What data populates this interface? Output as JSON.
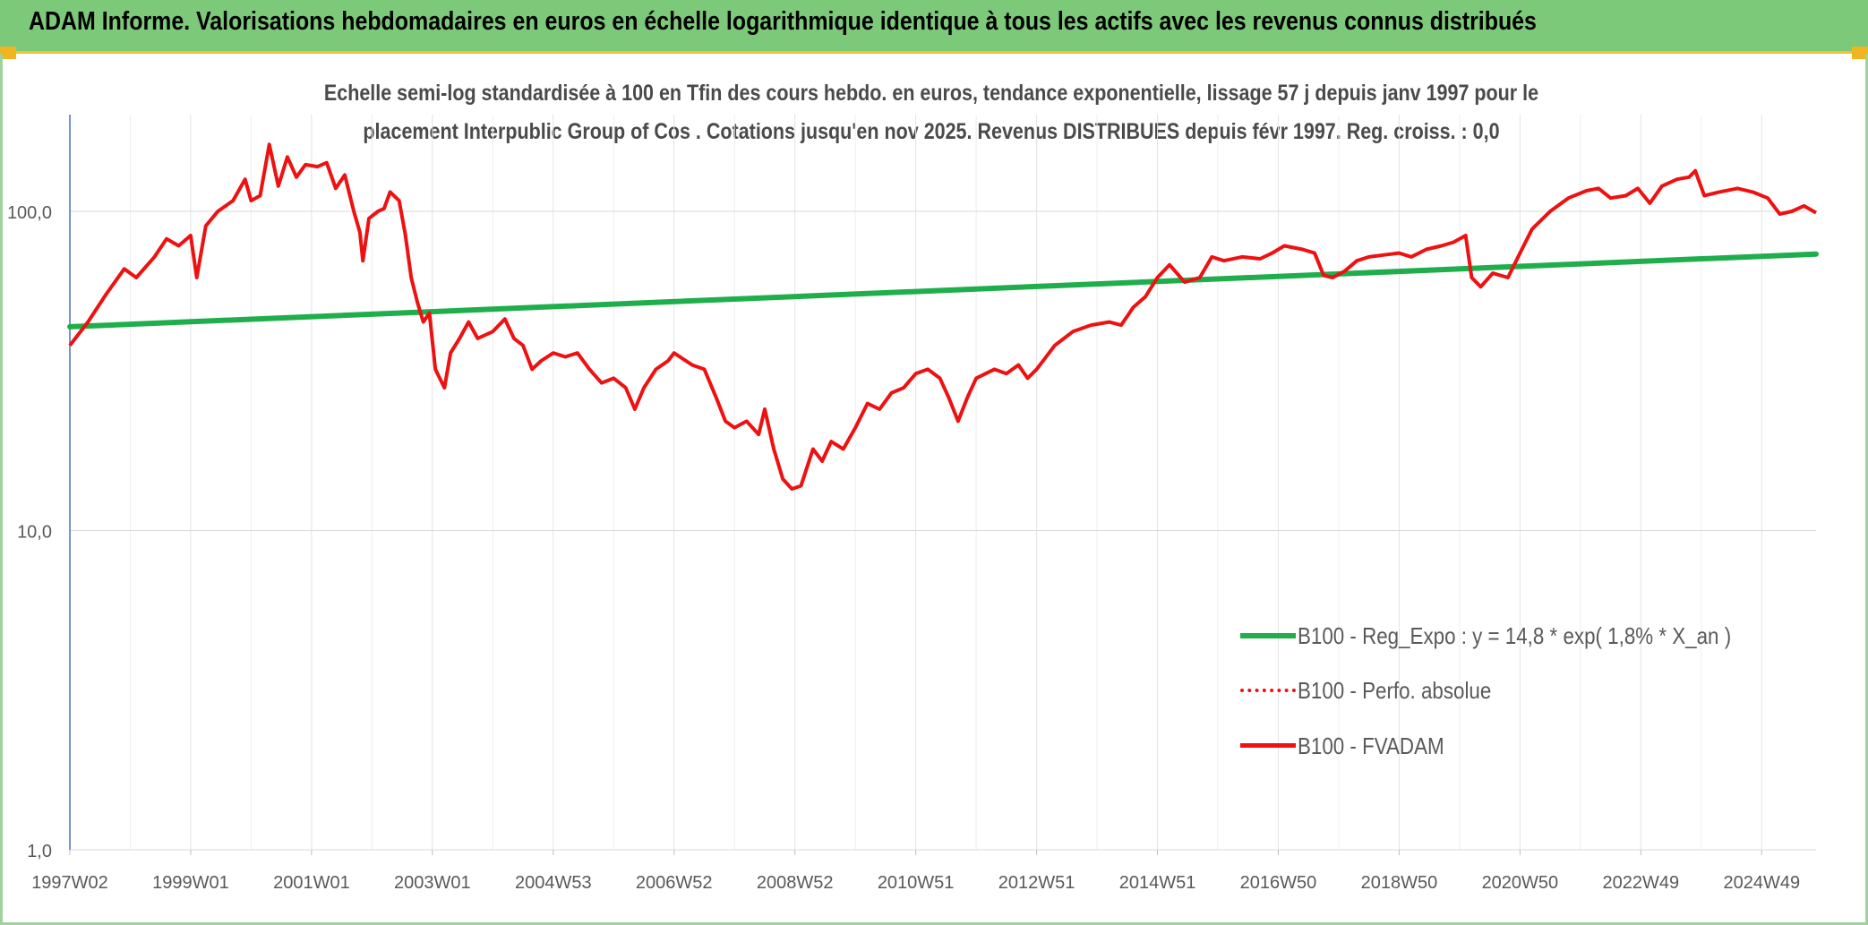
{
  "banner": {
    "title": "ADAM Informe. Valorisations hebdomadaires en euros en échelle logarithmique identique à tous les actifs avec les revenus connus distribués"
  },
  "colors": {
    "banner_bg": "#7dc97a",
    "accent": "#f1b51f",
    "trend": "#1fae4b",
    "series": "#ee1111",
    "grid": "#d9d9d9"
  },
  "chart_data": {
    "type": "line",
    "title_lines": [
      "Echelle semi-log standardisée à 100 en Tfin des cours hebdo. en euros, tendance exponentielle, lissage 57 j depuis janv 1997 pour le",
      "placement Interpublic Group of Cos . Cotations jusqu'en nov 2025. Revenus DISTRIBUES depuis févr 1997. Reg. croiss. : 0,0"
    ],
    "y_scale": "log",
    "ylim": [
      1,
      200
    ],
    "y_ticks": [
      {
        "value": 1,
        "label": "1,0"
      },
      {
        "value": 10,
        "label": "10,0"
      },
      {
        "value": 100,
        "label": "100,0"
      }
    ],
    "xlim": [
      1997.0,
      2025.9
    ],
    "x_ticks": [
      {
        "value": 1997.0,
        "label": "1997W02"
      },
      {
        "value": 1999.0,
        "label": "1999W01"
      },
      {
        "value": 2001.0,
        "label": "2001W01"
      },
      {
        "value": 2003.0,
        "label": "2003W01"
      },
      {
        "value": 2005.0,
        "label": "2004W53"
      },
      {
        "value": 2007.0,
        "label": "2006W52"
      },
      {
        "value": 2009.0,
        "label": "2008W52"
      },
      {
        "value": 2011.0,
        "label": "2010W51"
      },
      {
        "value": 2013.0,
        "label": "2012W51"
      },
      {
        "value": 2015.0,
        "label": "2014W51"
      },
      {
        "value": 2017.0,
        "label": "2016W50"
      },
      {
        "value": 2019.0,
        "label": "2018W50"
      },
      {
        "value": 2021.0,
        "label": "2020W50"
      },
      {
        "value": 2023.0,
        "label": "2022W49"
      },
      {
        "value": 2025.0,
        "label": "2024W49"
      }
    ],
    "legend_position": "bottom-right",
    "series": [
      {
        "name": "B100 - Reg_Expo : y = 14,8 * exp( 1,8% *  X_an )",
        "style": "solid-thick",
        "color": "#1fae4b",
        "points": [
          [
            1997.0,
            43.5
          ],
          [
            2025.9,
            73.5
          ]
        ]
      },
      {
        "name": "B100 - Perfo. absolue",
        "style": "dotted",
        "color": "#ee1111",
        "points": []
      },
      {
        "name": "B100 - FVADAM",
        "style": "solid",
        "color": "#ee1111",
        "points": [
          [
            1997.0,
            38
          ],
          [
            1997.3,
            45
          ],
          [
            1997.6,
            55
          ],
          [
            1997.9,
            66
          ],
          [
            1998.1,
            62
          ],
          [
            1998.4,
            72
          ],
          [
            1998.6,
            82
          ],
          [
            1998.8,
            78
          ],
          [
            1999.0,
            84
          ],
          [
            1999.1,
            62
          ],
          [
            1999.25,
            90
          ],
          [
            1999.45,
            100
          ],
          [
            1999.7,
            108
          ],
          [
            1999.9,
            126
          ],
          [
            2000.0,
            108
          ],
          [
            2000.15,
            112
          ],
          [
            2000.3,
            162
          ],
          [
            2000.45,
            120
          ],
          [
            2000.6,
            148
          ],
          [
            2000.75,
            128
          ],
          [
            2000.9,
            140
          ],
          [
            2001.1,
            138
          ],
          [
            2001.25,
            142
          ],
          [
            2001.4,
            118
          ],
          [
            2001.55,
            130
          ],
          [
            2001.7,
            100
          ],
          [
            2001.8,
            86
          ],
          [
            2001.85,
            70
          ],
          [
            2001.95,
            95
          ],
          [
            2002.1,
            100
          ],
          [
            2002.2,
            102
          ],
          [
            2002.3,
            115
          ],
          [
            2002.45,
            108
          ],
          [
            2002.55,
            85
          ],
          [
            2002.65,
            62
          ],
          [
            2002.75,
            52
          ],
          [
            2002.85,
            45
          ],
          [
            2002.95,
            48
          ],
          [
            2003.05,
            32
          ],
          [
            2003.2,
            28
          ],
          [
            2003.3,
            36
          ],
          [
            2003.45,
            40
          ],
          [
            2003.6,
            45
          ],
          [
            2003.75,
            40
          ],
          [
            2004.0,
            42
          ],
          [
            2004.2,
            46
          ],
          [
            2004.35,
            40
          ],
          [
            2004.5,
            38
          ],
          [
            2004.65,
            32
          ],
          [
            2004.8,
            34
          ],
          [
            2005.0,
            36
          ],
          [
            2005.2,
            35
          ],
          [
            2005.4,
            36
          ],
          [
            2005.6,
            32
          ],
          [
            2005.8,
            29
          ],
          [
            2006.0,
            30
          ],
          [
            2006.2,
            28
          ],
          [
            2006.35,
            24
          ],
          [
            2006.5,
            28
          ],
          [
            2006.7,
            32
          ],
          [
            2006.9,
            34
          ],
          [
            2007.0,
            36
          ],
          [
            2007.3,
            33
          ],
          [
            2007.5,
            32
          ],
          [
            2007.7,
            26
          ],
          [
            2007.85,
            22
          ],
          [
            2008.0,
            21
          ],
          [
            2008.2,
            22
          ],
          [
            2008.4,
            20
          ],
          [
            2008.5,
            24
          ],
          [
            2008.65,
            18
          ],
          [
            2008.8,
            14.5
          ],
          [
            2008.95,
            13.5
          ],
          [
            2009.1,
            13.8
          ],
          [
            2009.3,
            18
          ],
          [
            2009.45,
            16.5
          ],
          [
            2009.6,
            19
          ],
          [
            2009.8,
            18
          ],
          [
            2010.0,
            21
          ],
          [
            2010.2,
            25
          ],
          [
            2010.4,
            24
          ],
          [
            2010.6,
            27
          ],
          [
            2010.8,
            28
          ],
          [
            2011.0,
            31
          ],
          [
            2011.2,
            32
          ],
          [
            2011.4,
            30
          ],
          [
            2011.55,
            26
          ],
          [
            2011.7,
            22
          ],
          [
            2011.85,
            26
          ],
          [
            2012.0,
            30
          ],
          [
            2012.3,
            32
          ],
          [
            2012.5,
            31
          ],
          [
            2012.7,
            33
          ],
          [
            2012.85,
            30
          ],
          [
            2013.0,
            32
          ],
          [
            2013.3,
            38
          ],
          [
            2013.6,
            42
          ],
          [
            2013.9,
            44
          ],
          [
            2014.2,
            45
          ],
          [
            2014.4,
            44
          ],
          [
            2014.6,
            50
          ],
          [
            2014.8,
            54
          ],
          [
            2015.0,
            62
          ],
          [
            2015.2,
            68
          ],
          [
            2015.45,
            60
          ],
          [
            2015.7,
            62
          ],
          [
            2015.9,
            72
          ],
          [
            2016.1,
            70
          ],
          [
            2016.4,
            72
          ],
          [
            2016.7,
            71
          ],
          [
            2016.9,
            74
          ],
          [
            2017.1,
            78
          ],
          [
            2017.4,
            76
          ],
          [
            2017.6,
            74
          ],
          [
            2017.75,
            63
          ],
          [
            2017.9,
            62
          ],
          [
            2018.1,
            65
          ],
          [
            2018.3,
            70
          ],
          [
            2018.5,
            72
          ],
          [
            2018.75,
            73
          ],
          [
            2019.0,
            74
          ],
          [
            2019.2,
            72
          ],
          [
            2019.45,
            76
          ],
          [
            2019.7,
            78
          ],
          [
            2019.9,
            80
          ],
          [
            2020.1,
            84
          ],
          [
            2020.2,
            62
          ],
          [
            2020.35,
            58
          ],
          [
            2020.55,
            64
          ],
          [
            2020.8,
            62
          ],
          [
            2021.0,
            74
          ],
          [
            2021.2,
            88
          ],
          [
            2021.5,
            100
          ],
          [
            2021.8,
            110
          ],
          [
            2022.1,
            116
          ],
          [
            2022.3,
            118
          ],
          [
            2022.5,
            110
          ],
          [
            2022.75,
            112
          ],
          [
            2022.95,
            118
          ],
          [
            2023.15,
            106
          ],
          [
            2023.35,
            120
          ],
          [
            2023.6,
            126
          ],
          [
            2023.8,
            128
          ],
          [
            2023.9,
            134
          ],
          [
            2024.05,
            112
          ],
          [
            2024.3,
            115
          ],
          [
            2024.6,
            118
          ],
          [
            2024.85,
            115
          ],
          [
            2025.1,
            110
          ],
          [
            2025.3,
            98
          ],
          [
            2025.5,
            100
          ],
          [
            2025.7,
            104
          ],
          [
            2025.9,
            99
          ]
        ]
      }
    ]
  }
}
